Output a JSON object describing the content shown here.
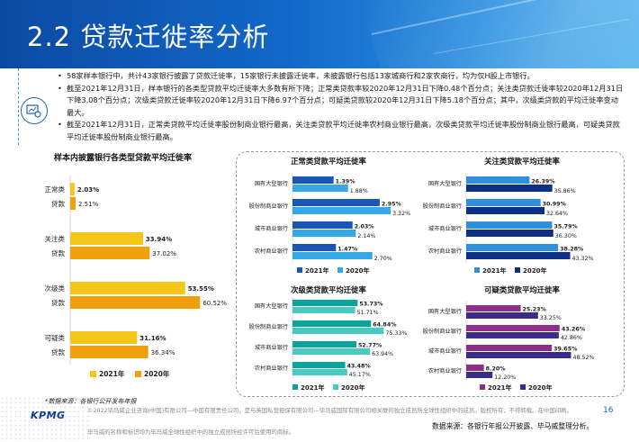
{
  "page": {
    "title": "2.2 贷款迁徙率分析",
    "page_number": "16",
    "logo_text": "KPMG",
    "footnote": "*数据来源：各银行公开发布年报",
    "copyright": "©2022毕马威企业咨询(中国)有限公司—中国有限责任公司，是与英国私营担保有限公司—毕马威国际有限公司相关联的独立成员所全球性组织中的成员。版权所有，不得转载。在中国印刷。",
    "disclaimer": "毕马威的名称和标识均为毕马威全球性组织中的独立成员所经许可后使用的商标。",
    "source_right": "数据来源：各银行年报公开披露、毕马威整理分析。"
  },
  "bullets": [
    "58家样本银行中，共计43家银行披露了贷款迁徙率，15家银行未披露迁徙率，未披露银行包括13家城商行和2家农商行，均为仅H股上市银行。",
    "截至2021年12月31日，样本银行的各类型贷款平均迁徙率大多数有所下降；正常类贷款率较2020年12月31日下降0.48个百分点；关注类贷款迁徙率较2020年12月31日下降3.08个百分点；次级类贷款迁徙率较2020年12月31日下降6.97个百分点；可疑类贷款较2020年12月31日下降5.18个百分点；其中，次级类贷款的平均迁徙率变动最大。",
    "截至2021年12月31日，正常类贷款平均迁徙率股份制商业银行最高，关注类贷款平均迁徙率农村商业银行最高，次级类贷款平均迁徙率股份制商业银行最高，可疑类贷款平均迁徙率股份制商业银行最高。"
  ],
  "colors": {
    "left_2021": "#f5c518",
    "left_2020": "#f0a00a",
    "normal_2021": "#1a56b8",
    "normal_2020": "#35a8e8",
    "attention_2021": "#2f8fdc",
    "attention_2020": "#0f2e86",
    "substandard_2021": "#0aa39e",
    "substandard_2020": "#49c9c2",
    "doubtful_2021": "#8e2e8b",
    "doubtful_2020": "#3b2b8c"
  },
  "chart_data": [
    {
      "type": "bar",
      "title": "样本内披露银行各类型贷款平均迁徙率",
      "categories": [
        "正常类\n贷款",
        "关注类\n贷款",
        "次级类\n贷款",
        "可疑类\n贷款"
      ],
      "series": [
        {
          "name": "2021年",
          "values": [
            2.03,
            33.94,
            53.55,
            31.16
          ],
          "labels": [
            "2.03%",
            "33.94%",
            "53.55%",
            "31.16%"
          ]
        },
        {
          "name": "2020年",
          "values": [
            2.51,
            37.02,
            60.52,
            36.34
          ],
          "labels": [
            "2.51%",
            "37.02%",
            "60.52%",
            "36.34%"
          ]
        }
      ],
      "xlim": [
        0,
        65
      ]
    },
    {
      "type": "bar",
      "title": "正常类贷款平均迁徙率",
      "categories": [
        "国有大型银行",
        "股份制商业银行",
        "城市商业银行",
        "农村商业银行"
      ],
      "series": [
        {
          "name": "2021年",
          "values": [
            1.39,
            2.95,
            2.03,
            1.47
          ],
          "labels": [
            "1.39%",
            "2.95%",
            "2.03%",
            "1.47%"
          ]
        },
        {
          "name": "2020年",
          "values": [
            1.88,
            3.32,
            2.14,
            2.7
          ],
          "labels": [
            "1.88%",
            "3.32%",
            "2.14%",
            "2.70%"
          ]
        }
      ],
      "xlim": [
        0,
        3.5
      ]
    },
    {
      "type": "bar",
      "title": "关注类贷款平均迁徙率",
      "categories": [
        "国有大型银行",
        "股份制商业银行",
        "城市商业银行",
        "农村商业银行"
      ],
      "series": [
        {
          "name": "2021年",
          "values": [
            26.39,
            30.99,
            35.79,
            38.28
          ],
          "labels": [
            "26.39%",
            "30.99%",
            "35.79%",
            "38.28%"
          ]
        },
        {
          "name": "2020年",
          "values": [
            35.86,
            32.64,
            36.3,
            43.32
          ],
          "labels": [
            "35.86%",
            "32.64%",
            "36.30%",
            "43.32%"
          ]
        }
      ],
      "xlim": [
        0,
        45
      ]
    },
    {
      "type": "bar",
      "title": "次级类贷款平均迁徙率",
      "categories": [
        "国有大型银行",
        "股份制商业银行",
        "城市商业银行",
        "农村商业银行"
      ],
      "series": [
        {
          "name": "2021年",
          "values": [
            53.73,
            64.84,
            52.77,
            43.48
          ],
          "labels": [
            "53.73%",
            "64.84%",
            "52.77%",
            "43.48%"
          ]
        },
        {
          "name": "2020年",
          "values": [
            51.71,
            75.33,
            63.94,
            45.17
          ],
          "labels": [
            "51.71%",
            "75.33%",
            "63.94%",
            "45.17%"
          ]
        }
      ],
      "xlim": [
        0,
        78
      ]
    },
    {
      "type": "bar",
      "title": "可疑类贷款平均迁徙率",
      "categories": [
        "国有大型银行",
        "股份制商业银行",
        "城市商业银行",
        "农村商业银行"
      ],
      "series": [
        {
          "name": "2021年",
          "values": [
            25.23,
            43.26,
            39.65,
            8.2
          ],
          "labels": [
            "25.23%",
            "43.26%",
            "39.65%",
            "8.20%"
          ]
        },
        {
          "name": "2020年",
          "values": [
            33.25,
            42.86,
            48.52,
            12.2
          ],
          "labels": [
            "33.25%",
            "42.86%",
            "48.52%",
            "12.20%"
          ]
        }
      ],
      "xlim": [
        0,
        50
      ]
    }
  ]
}
